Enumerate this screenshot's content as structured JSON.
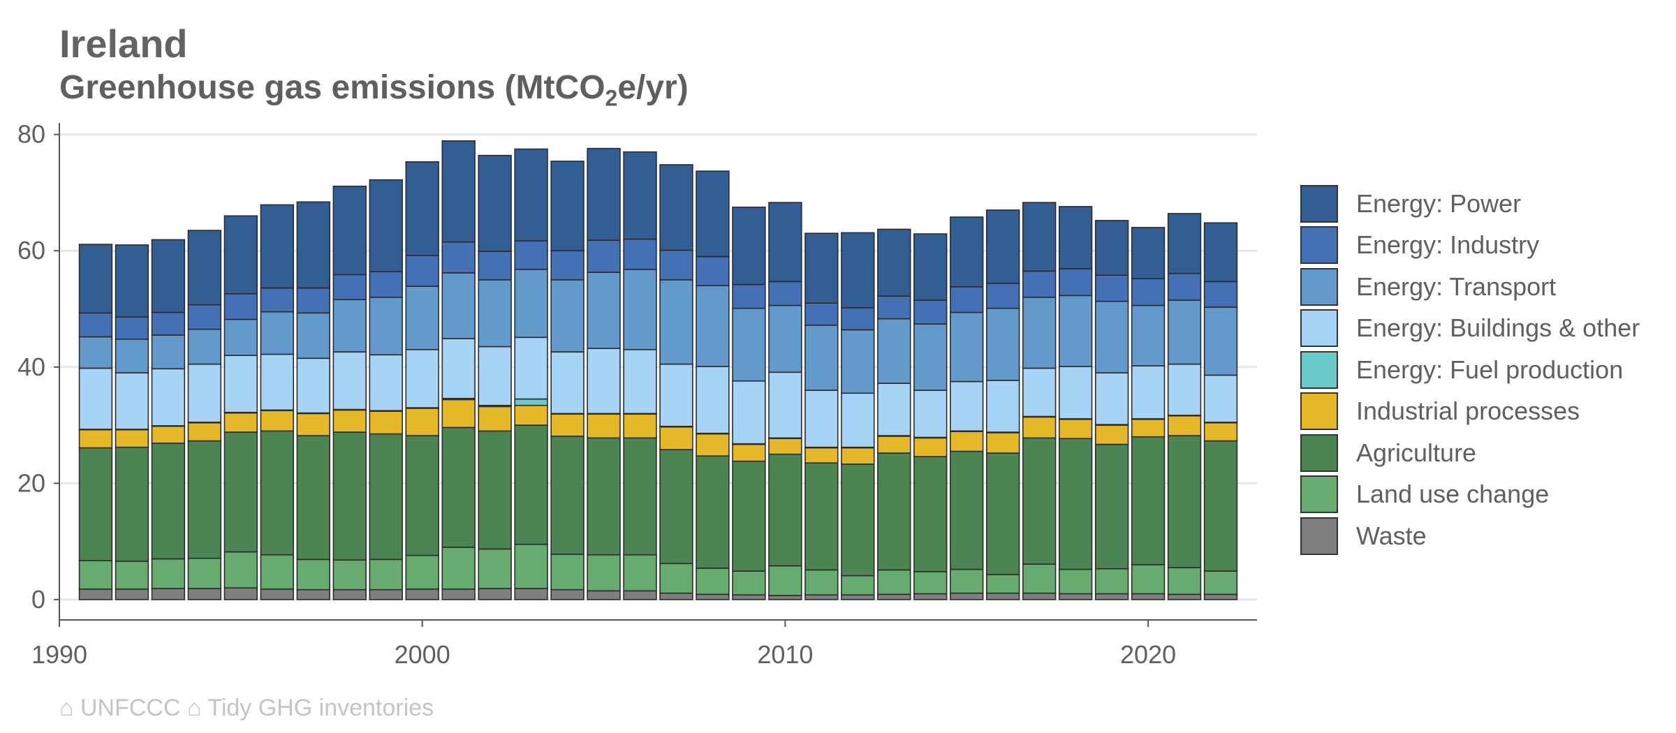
{
  "title": "Ireland",
  "subtitle": {
    "text": "Greenhouse gas emissions (MtCO",
    "sub": "2",
    "tail": "e/yr)"
  },
  "caption": "⌂ UNFCCC ⌂ Tidy GHG inventories",
  "chart_data": {
    "type": "bar",
    "stacked": true,
    "x": [
      1991,
      1992,
      1993,
      1994,
      1995,
      1996,
      1997,
      1998,
      1999,
      2000,
      2001,
      2002,
      2003,
      2004,
      2005,
      2006,
      2007,
      2008,
      2009,
      2010,
      2011,
      2012,
      2013,
      2014,
      2015,
      2016,
      2017,
      2018,
      2019,
      2020,
      2021,
      2022
    ],
    "xticks": [
      "1990",
      "2000",
      "2010",
      "2020"
    ],
    "xlim": [
      1990,
      2023
    ],
    "yticks": [
      "0",
      "20",
      "40",
      "60",
      "80"
    ],
    "ylim": [
      -3.5,
      82
    ],
    "grid": "horizontal",
    "legend_position": "right",
    "series": [
      {
        "name": "Waste",
        "color": "#7f7f7f",
        "values": [
          1.8,
          1.8,
          1.9,
          1.9,
          2.0,
          1.8,
          1.7,
          1.7,
          1.7,
          1.8,
          1.8,
          1.9,
          1.9,
          1.7,
          1.5,
          1.5,
          1.1,
          0.9,
          0.8,
          0.7,
          0.8,
          0.8,
          0.9,
          1.0,
          1.1,
          1.1,
          1.1,
          1.0,
          1.0,
          1.0,
          0.9,
          0.9
        ]
      },
      {
        "name": "Land use change",
        "color": "#67ab70",
        "values": [
          4.9,
          4.8,
          5.1,
          5.2,
          6.2,
          5.9,
          5.2,
          5.1,
          5.2,
          5.8,
          7.2,
          6.8,
          7.6,
          6.1,
          6.2,
          6.2,
          5.1,
          4.5,
          4.1,
          5.1,
          4.3,
          3.3,
          4.2,
          3.8,
          4.1,
          3.2,
          5.0,
          4.2,
          4.3,
          5.0,
          4.6,
          4.0
        ]
      },
      {
        "name": "Agriculture",
        "color": "#4c8453",
        "values": [
          19.4,
          19.6,
          19.9,
          20.2,
          20.6,
          21.3,
          21.3,
          22.0,
          21.6,
          20.6,
          20.6,
          20.3,
          20.5,
          20.3,
          20.1,
          20.1,
          19.6,
          19.3,
          18.9,
          19.2,
          18.4,
          19.2,
          20.1,
          19.8,
          20.3,
          20.9,
          21.7,
          22.5,
          21.4,
          22.0,
          22.7,
          22.4
        ]
      },
      {
        "name": "Industrial processes",
        "color": "#e5b82a",
        "values": [
          3.1,
          3.0,
          2.9,
          3.1,
          3.3,
          3.5,
          3.8,
          3.8,
          3.9,
          4.7,
          4.8,
          4.2,
          3.4,
          3.8,
          4.1,
          4.1,
          3.9,
          3.8,
          2.9,
          2.7,
          2.6,
          2.8,
          2.9,
          3.2,
          3.4,
          3.5,
          3.6,
          3.3,
          3.3,
          3.0,
          3.4,
          3.1
        ]
      },
      {
        "name": "Energy: Fuel production",
        "color": "#6ac9c9",
        "values": [
          0.1,
          0.1,
          0.1,
          0.1,
          0.1,
          0.1,
          0.1,
          0.1,
          0.1,
          0.1,
          0.2,
          0.2,
          1.1,
          0.1,
          0.1,
          0.1,
          0.1,
          0.1,
          0.1,
          0.1,
          0.1,
          0.1,
          0.1,
          0.1,
          0.1,
          0.1,
          0.1,
          0.1,
          0.1,
          0.1,
          0.1,
          0.1
        ]
      },
      {
        "name": "Energy: Buildings & other",
        "color": "#a7d3f5",
        "values": [
          10.5,
          9.7,
          9.8,
          10.0,
          9.8,
          9.6,
          9.4,
          9.9,
          9.6,
          10.0,
          10.3,
          10.1,
          10.6,
          10.6,
          11.2,
          11.0,
          10.7,
          11.5,
          10.8,
          11.3,
          9.8,
          9.3,
          9.0,
          8.1,
          8.5,
          8.9,
          8.3,
          9.0,
          8.9,
          9.1,
          8.8,
          8.1
        ]
      },
      {
        "name": "Energy: Transport",
        "color": "#6399cb",
        "values": [
          5.4,
          5.8,
          5.8,
          6.0,
          6.2,
          7.3,
          7.8,
          9.0,
          9.9,
          10.9,
          11.3,
          11.5,
          11.7,
          12.4,
          13.1,
          13.8,
          14.5,
          13.9,
          12.5,
          11.5,
          11.2,
          10.9,
          11.1,
          11.4,
          11.9,
          12.4,
          12.2,
          12.2,
          12.3,
          10.4,
          11.0,
          11.7
        ]
      },
      {
        "name": "Energy: Industry",
        "color": "#4470b6",
        "values": [
          4.1,
          3.8,
          3.9,
          4.2,
          4.4,
          4.1,
          4.3,
          4.3,
          4.4,
          5.3,
          5.3,
          4.9,
          4.9,
          5.0,
          5.5,
          5.2,
          5.1,
          5.0,
          4.1,
          4.1,
          3.8,
          3.8,
          3.9,
          4.1,
          4.4,
          4.3,
          4.5,
          4.6,
          4.5,
          4.6,
          4.6,
          4.4
        ]
      },
      {
        "name": "Energy: Power",
        "color": "#335e93",
        "values": [
          11.8,
          12.4,
          12.5,
          12.8,
          13.4,
          14.3,
          14.8,
          15.2,
          15.8,
          16.1,
          17.4,
          16.5,
          15.8,
          15.4,
          15.8,
          15.0,
          14.7,
          14.7,
          13.3,
          13.6,
          12.0,
          12.9,
          11.5,
          11.4,
          12.0,
          12.6,
          11.8,
          10.7,
          9.4,
          8.8,
          10.3,
          10.1
        ]
      }
    ]
  }
}
